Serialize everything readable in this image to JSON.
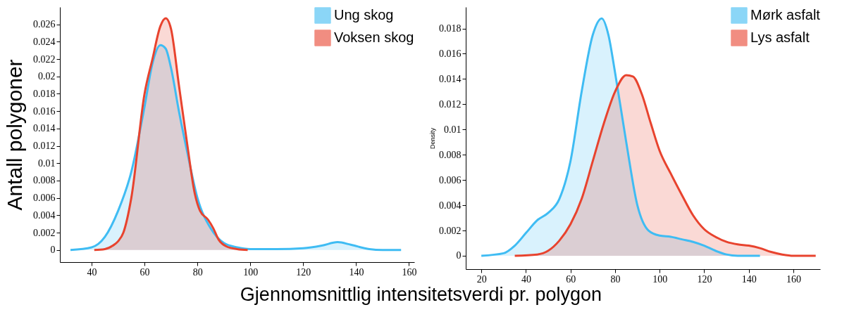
{
  "chart_data": [
    {
      "type": "area",
      "xlabel": "Gjennomsnittlig intensitetsverdi pr. polygon",
      "ylabel": "Antall polygoner",
      "xlim": [
        28,
        162
      ],
      "ylim": [
        -0.0014,
        0.028
      ],
      "xticks": [
        40,
        60,
        80,
        100,
        120,
        140,
        160
      ],
      "yticks": [
        0,
        0.002,
        0.004,
        0.006,
        0.008,
        0.01,
        0.012,
        0.014,
        0.016,
        0.018,
        0.02,
        0.022,
        0.024,
        0.026
      ],
      "grid": false,
      "legend": "top right",
      "series": [
        {
          "name": "Ung skog",
          "color": "#3fbcf3",
          "x": [
            32,
            40,
            45,
            50,
            55,
            60,
            63,
            66,
            68,
            70,
            73,
            76,
            80,
            85,
            90,
            95,
            100,
            110,
            120,
            127,
            133,
            138,
            145,
            150,
            157
          ],
          "values": [
            0,
            0.0003,
            0.0015,
            0.0045,
            0.009,
            0.0165,
            0.0215,
            0.0236,
            0.0232,
            0.021,
            0.016,
            0.0115,
            0.006,
            0.0025,
            0.0008,
            0.0003,
            0.0001,
            0.0001,
            0.0002,
            0.0005,
            0.0009,
            0.0006,
            0.0001,
            0,
            0
          ]
        },
        {
          "name": "Voksen skog",
          "color": "#e8432e",
          "x": [
            41,
            45,
            48,
            50,
            52,
            55,
            60,
            63,
            66,
            68,
            70,
            73,
            76,
            79,
            81,
            84,
            86,
            88,
            91,
            95,
            99
          ],
          "values": [
            0,
            0.0001,
            0.0005,
            0.001,
            0.002,
            0.006,
            0.018,
            0.022,
            0.0258,
            0.0267,
            0.0255,
            0.019,
            0.0125,
            0.0065,
            0.0045,
            0.0035,
            0.0025,
            0.0012,
            0.0004,
            0.0001,
            0
          ]
        }
      ]
    },
    {
      "type": "area",
      "ylabel": "Density",
      "xlim": [
        13,
        172
      ],
      "ylim": [
        -0.00106,
        0.0197
      ],
      "xticks": [
        20,
        40,
        60,
        80,
        100,
        120,
        140,
        160
      ],
      "yticks": [
        0,
        0.002,
        0.004,
        0.006,
        0.008,
        0.01,
        0.012,
        0.014,
        0.016,
        0.018
      ],
      "grid": false,
      "legend": "top right",
      "series": [
        {
          "name": "Mørk asfalt",
          "color": "#3fbcf3",
          "x": [
            20,
            30,
            35,
            40,
            45,
            50,
            55,
            60,
            65,
            70,
            74,
            77,
            80,
            85,
            90,
            95,
            100,
            105,
            110,
            115,
            120,
            125,
            130,
            135,
            145
          ],
          "values": [
            0,
            0.0002,
            0.0008,
            0.0018,
            0.0028,
            0.0034,
            0.0045,
            0.0075,
            0.013,
            0.0175,
            0.0188,
            0.0175,
            0.0145,
            0.009,
            0.004,
            0.002,
            0.0016,
            0.0015,
            0.0013,
            0.0011,
            0.0008,
            0.0004,
            0.0001,
            0,
            0
          ]
        },
        {
          "name": "Lys asfalt",
          "color": "#e8432e",
          "x": [
            35,
            45,
            50,
            55,
            60,
            65,
            70,
            75,
            80,
            85,
            88,
            92,
            96,
            100,
            105,
            110,
            115,
            120,
            125,
            130,
            135,
            140,
            145,
            150,
            155,
            160,
            170
          ],
          "values": [
            0,
            0.0001,
            0.0004,
            0.0012,
            0.0025,
            0.0045,
            0.0075,
            0.0105,
            0.013,
            0.0143,
            0.0142,
            0.0128,
            0.0105,
            0.0083,
            0.0065,
            0.0048,
            0.0032,
            0.0021,
            0.0015,
            0.0011,
            0.0009,
            0.0008,
            0.0006,
            0.0003,
            0.0001,
            0,
            0
          ]
        }
      ]
    }
  ]
}
